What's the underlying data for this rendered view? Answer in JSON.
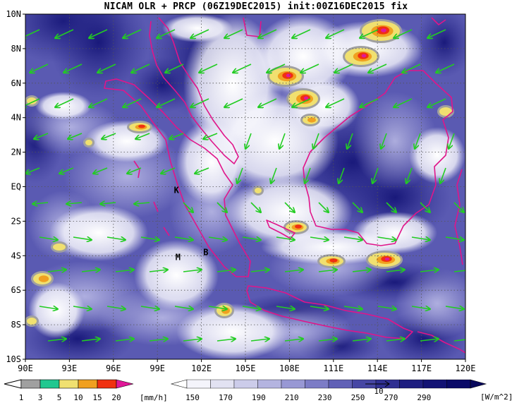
{
  "title": "NICAM OLR + PRCP (06Z19DEC2015) init:00Z16DEC2015 fix",
  "map": {
    "lat_labels": [
      "10N",
      "8N",
      "6N",
      "4N",
      "2N",
      "EQ",
      "2S",
      "4S",
      "6S",
      "8S",
      "10S"
    ],
    "lon_labels": [
      "90E",
      "93E",
      "96E",
      "99E",
      "102E",
      "105E",
      "108E",
      "111E",
      "114E",
      "117E",
      "120E"
    ],
    "station_labels": [
      {
        "id": "K",
        "lon": 100.3,
        "lat": -0.2
      },
      {
        "id": "M",
        "lon": 100.4,
        "lat": -4.1
      },
      {
        "id": "B",
        "lon": 102.3,
        "lat": -3.8
      }
    ],
    "colors": {
      "coastline": "#e0158a",
      "wind_arrow": "#22cc22",
      "grid": "#555555"
    }
  },
  "precip_colorbar": {
    "ticks": [
      "1",
      "3",
      "5",
      "10",
      "15",
      "20"
    ],
    "unit": "[mm/h]",
    "colors": [
      "#a0a0a0",
      "#20c890",
      "#f0e070",
      "#f0a020",
      "#f03010",
      "#e01898"
    ]
  },
  "olr_colorbar": {
    "ticks": [
      "150",
      "170",
      "190",
      "210",
      "230",
      "250",
      "270",
      "290"
    ],
    "unit": "[W/m^2]",
    "colors": [
      "#f4f4fb",
      "#e2e2f2",
      "#ccccea",
      "#b4b4e0",
      "#9898d4",
      "#7c7cc6",
      "#6060b6",
      "#4646a4",
      "#303092",
      "#1e1e80",
      "#121274",
      "#0a0a68"
    ],
    "arrow_label": "10"
  }
}
